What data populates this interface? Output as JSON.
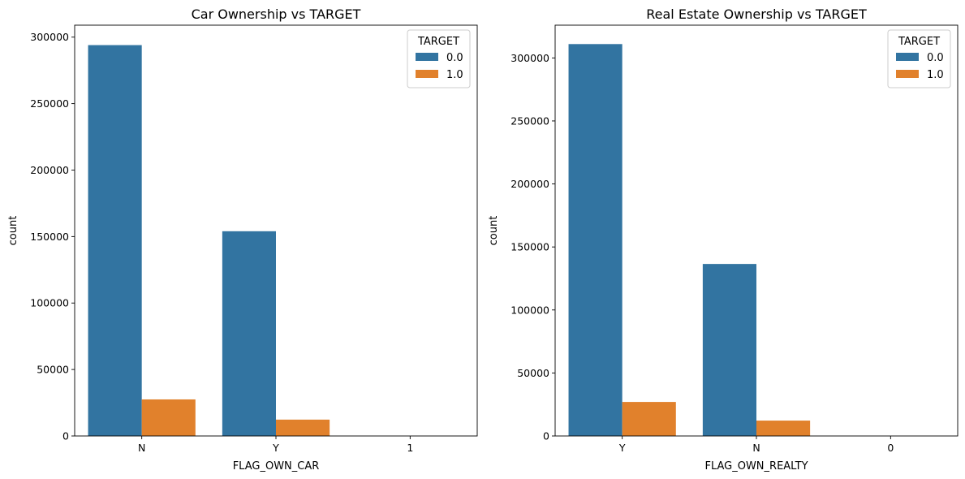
{
  "colors": {
    "series_0": "#3274a1",
    "series_1": "#e1812c"
  },
  "chart_data": [
    {
      "type": "bar",
      "title": "Car Ownership vs TARGET",
      "xlabel": "FLAG_OWN_CAR",
      "ylabel": "count",
      "categories": [
        "N",
        "Y",
        "1"
      ],
      "legend_title": "TARGET",
      "legend_position": "top-right",
      "ylim": [
        0,
        309000
      ],
      "yticks": [
        0,
        50000,
        100000,
        150000,
        200000,
        250000,
        300000
      ],
      "ytick_labels": [
        "0",
        "50000",
        "100000",
        "150000",
        "200000",
        "250000",
        "300000"
      ],
      "grid": false,
      "series": [
        {
          "name": "0.0",
          "values": [
            294000,
            154000,
            0
          ]
        },
        {
          "name": "1.0",
          "values": [
            27500,
            12300,
            0
          ]
        }
      ]
    },
    {
      "type": "bar",
      "title": "Real Estate Ownership vs TARGET",
      "xlabel": "FLAG_OWN_REALTY",
      "ylabel": "count",
      "categories": [
        "Y",
        "N",
        "0"
      ],
      "legend_title": "TARGET",
      "legend_position": "top-right",
      "ylim": [
        0,
        326000
      ],
      "yticks": [
        0,
        50000,
        100000,
        150000,
        200000,
        250000,
        300000
      ],
      "ytick_labels": [
        "0",
        "50000",
        "100000",
        "150000",
        "200000",
        "250000",
        "300000"
      ],
      "grid": false,
      "series": [
        {
          "name": "0.0",
          "values": [
            311000,
            136500,
            0
          ]
        },
        {
          "name": "1.0",
          "values": [
            27000,
            12200,
            0
          ]
        }
      ]
    }
  ]
}
